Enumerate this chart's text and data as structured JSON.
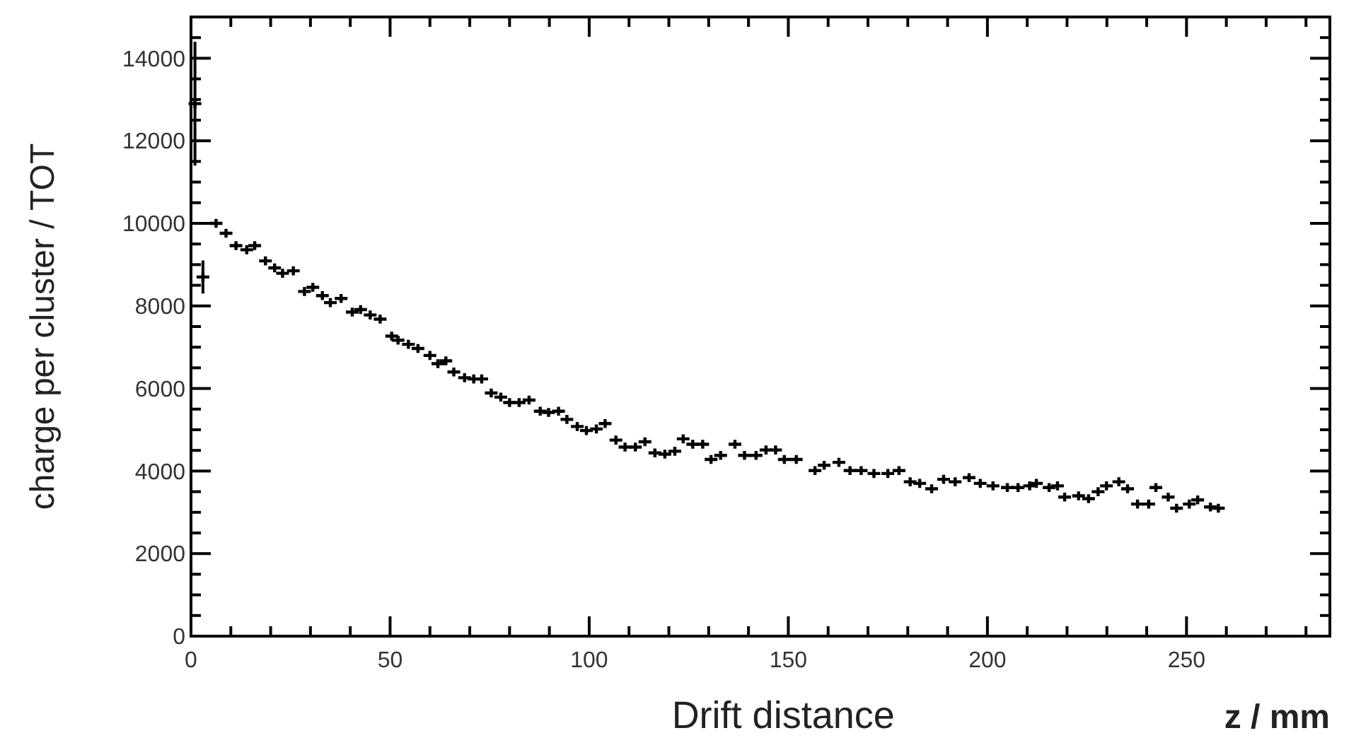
{
  "chart_data": {
    "type": "scatter",
    "xlabel": "Drift distance",
    "ylabel": "charge per cluster / TOT",
    "annotations": [
      "z / mm"
    ],
    "xlim": [
      0,
      286
    ],
    "ylim": [
      0,
      15000
    ],
    "xticks": [
      0,
      50,
      100,
      150,
      200,
      250
    ],
    "yticks": [
      0,
      2000,
      4000,
      6000,
      8000,
      10000,
      12000,
      14000
    ],
    "marker": "cross",
    "series": [
      {
        "color": "#000000",
        "x": [
          1,
          3,
          6.3,
          8.8,
          11.3,
          14,
          16,
          18.7,
          21,
          23,
          25.7,
          28.5,
          30.6,
          33,
          35,
          37.7,
          40.5,
          42.6,
          45,
          47.5,
          50.4,
          52,
          54.6,
          57,
          60,
          62,
          64,
          66,
          68.7,
          71,
          73,
          75.4,
          77.8,
          80,
          82.4,
          84.9,
          87.7,
          89.8,
          92.3,
          94.4,
          97,
          99.3,
          101.8,
          104,
          106.7,
          109,
          111.6,
          114,
          116.5,
          119,
          121.5,
          123.6,
          126,
          128.5,
          130.6,
          133,
          136.6,
          139,
          141.9,
          144.4,
          146.8,
          149,
          152,
          156.7,
          159,
          162.7,
          165.5,
          168.3,
          171.5,
          175,
          177.8,
          180.6,
          183,
          186,
          189,
          191.9,
          195.4,
          198.2,
          201.4,
          205,
          207.7,
          210.6,
          212.3,
          215.5,
          217.6,
          219.4,
          222.9,
          225.4,
          227.8,
          229.9,
          233,
          235.2,
          237.7,
          240.5,
          242.3,
          245.4,
          247.5,
          250.7,
          252.8,
          256,
          258
        ],
        "values": [
          12900,
          8700,
          10000,
          9760,
          9460,
          9360,
          9460,
          9090,
          8920,
          8790,
          8850,
          8350,
          8450,
          8250,
          8080,
          8180,
          7850,
          7910,
          7780,
          7680,
          7270,
          7170,
          7070,
          6970,
          6800,
          6600,
          6670,
          6400,
          6260,
          6230,
          6230,
          5890,
          5790,
          5660,
          5660,
          5720,
          5450,
          5420,
          5450,
          5250,
          5080,
          4980,
          5020,
          5150,
          4750,
          4580,
          4580,
          4710,
          4440,
          4410,
          4480,
          4780,
          4650,
          4650,
          4280,
          4380,
          4650,
          4380,
          4380,
          4510,
          4510,
          4280,
          4280,
          4010,
          4140,
          4210,
          4010,
          4010,
          3940,
          3940,
          4010,
          3740,
          3700,
          3570,
          3800,
          3740,
          3840,
          3700,
          3640,
          3600,
          3600,
          3640,
          3700,
          3600,
          3640,
          3370,
          3400,
          3330,
          3500,
          3640,
          3740,
          3570,
          3200,
          3200,
          3600,
          3370,
          3100,
          3200,
          3300,
          3130,
          3100
        ],
        "errors": [
          1500,
          400,
          null,
          null,
          null,
          null,
          null,
          null,
          null,
          null,
          null,
          null,
          null,
          null,
          null,
          null,
          null,
          null,
          null,
          null,
          null,
          null,
          null,
          null,
          null,
          null,
          null,
          null,
          null,
          null,
          null,
          null,
          null,
          null,
          null,
          null,
          null,
          null,
          null,
          null,
          null,
          null,
          null,
          null,
          null,
          null,
          null,
          null,
          null,
          null,
          null,
          null,
          null,
          null,
          null,
          null,
          null,
          null,
          null,
          null,
          null,
          null,
          null,
          null,
          null,
          null,
          null,
          null,
          null,
          null,
          null,
          null,
          null,
          null,
          null,
          null,
          null,
          null,
          null,
          null,
          null,
          null,
          null,
          null,
          null,
          null,
          null,
          null,
          null,
          null,
          null,
          null,
          null,
          null,
          null,
          null,
          null,
          null,
          null,
          null,
          null
        ]
      }
    ]
  }
}
